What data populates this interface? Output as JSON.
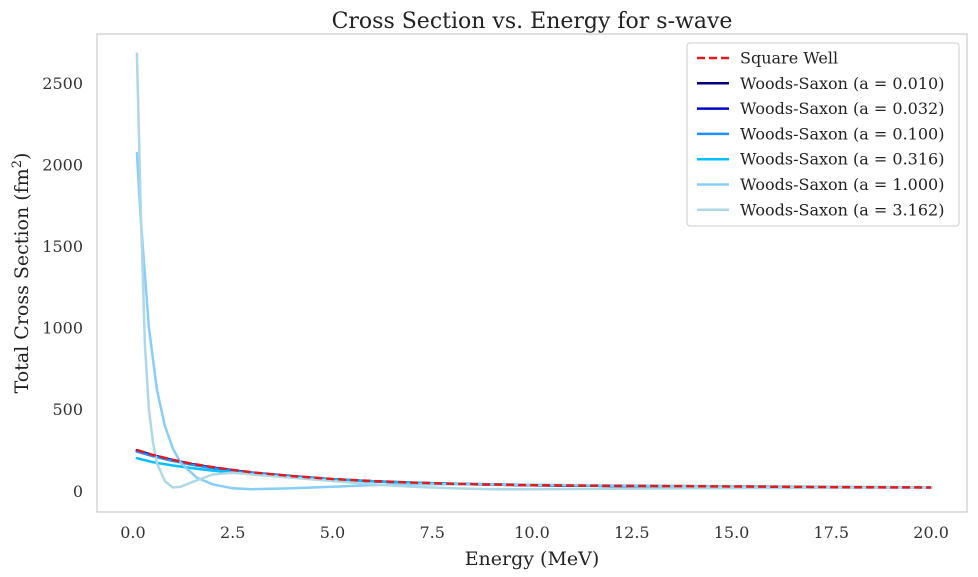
{
  "chart_data": {
    "type": "line",
    "title": "Cross Section vs. Energy for s-wave",
    "xlabel": "Energy (MeV)",
    "ylabel_main": "Total Cross Section (fm",
    "ylabel_sup": "2",
    "ylabel_close": ")",
    "xlim": [
      -0.9,
      20.9
    ],
    "ylim": [
      -130,
      2800
    ],
    "xticks": [
      0.0,
      2.5,
      5.0,
      7.5,
      10.0,
      12.5,
      15.0,
      17.5,
      20.0
    ],
    "xtick_labels": [
      "0.0",
      "2.5",
      "5.0",
      "7.5",
      "10.0",
      "12.5",
      "15.0",
      "17.5",
      "20.0"
    ],
    "yticks": [
      0,
      500,
      1000,
      1500,
      2000,
      2500
    ],
    "ytick_labels": [
      "0",
      "500",
      "1000",
      "1500",
      "2000",
      "2500"
    ],
    "grid": false,
    "legend_position": "top-right",
    "series": [
      {
        "name": "Square Well",
        "color": "#e31a1c",
        "dash": true,
        "x": [
          0.1,
          0.5,
          1,
          1.5,
          2,
          2.5,
          3,
          4,
          5,
          6,
          7,
          8,
          10,
          12,
          14,
          16,
          18,
          20
        ],
        "y": [
          250,
          220,
          190,
          165,
          145,
          128,
          113,
          90,
          72,
          60,
          50,
          43,
          34,
          30,
          28,
          25,
          22,
          20
        ]
      },
      {
        "name": "Woods-Saxon (a = 0.010)",
        "color": "#000080",
        "dash": false,
        "x": [
          0.1,
          0.5,
          1,
          1.5,
          2,
          2.5,
          3,
          4,
          5,
          6,
          7,
          8,
          10,
          12,
          14,
          16,
          18,
          20
        ],
        "y": [
          248,
          218,
          188,
          163,
          143,
          126,
          111,
          89,
          71,
          59,
          49,
          42,
          34,
          30,
          27,
          25,
          22,
          20
        ]
      },
      {
        "name": "Woods-Saxon (a = 0.032)",
        "color": "#0000cd",
        "dash": false,
        "x": [
          0.1,
          0.5,
          1,
          1.5,
          2,
          2.5,
          3,
          4,
          5,
          6,
          7,
          8,
          10,
          12,
          14,
          16,
          18,
          20
        ],
        "y": [
          245,
          215,
          186,
          161,
          141,
          124,
          110,
          88,
          70,
          58,
          49,
          42,
          34,
          30,
          27,
          25,
          22,
          20
        ]
      },
      {
        "name": "Woods-Saxon (a = 0.100)",
        "color": "#1e90ff",
        "dash": false,
        "x": [
          0.1,
          0.5,
          1,
          1.5,
          2,
          2.5,
          3,
          4,
          5,
          6,
          7,
          8,
          10,
          12,
          14,
          16,
          18,
          20
        ],
        "y": [
          240,
          212,
          183,
          159,
          139,
          122,
          109,
          87,
          70,
          58,
          49,
          42,
          34,
          30,
          27,
          25,
          22,
          20
        ]
      },
      {
        "name": "Woods-Saxon (a = 0.316)",
        "color": "#00bfff",
        "dash": false,
        "x": [
          0.1,
          0.5,
          1,
          1.5,
          2,
          2.5,
          3,
          4,
          5,
          6,
          7,
          8,
          10,
          12,
          14,
          16,
          18,
          20
        ],
        "y": [
          200,
          175,
          155,
          138,
          124,
          112,
          101,
          84,
          70,
          59,
          50,
          44,
          36,
          31,
          28,
          25,
          23,
          21
        ]
      },
      {
        "name": "Woods-Saxon (a = 1.000)",
        "color": "#87cefa",
        "dash": false,
        "x": [
          0.1,
          0.2,
          0.4,
          0.6,
          0.8,
          1.0,
          1.2,
          1.6,
          2.0,
          2.5,
          3.0,
          3.5,
          4.0,
          5.0,
          6.0,
          7.0,
          8.0,
          10.0,
          12.0,
          14.0,
          16.0,
          18.0,
          20.0
        ],
        "y": [
          2070,
          1650,
          1000,
          620,
          400,
          260,
          170,
          80,
          40,
          15,
          10,
          12,
          15,
          25,
          35,
          40,
          40,
          37,
          33,
          30,
          27,
          24,
          22
        ]
      },
      {
        "name": "Woods-Saxon (a = 3.162)",
        "color": "#add8e6",
        "dash": false,
        "x": [
          0.1,
          0.2,
          0.3,
          0.4,
          0.5,
          0.6,
          0.8,
          1.0,
          1.2,
          1.5,
          2.0,
          2.5,
          3.0,
          4.0,
          5.0,
          6.0,
          7.0,
          8.0,
          9.0,
          10.0,
          12.0,
          14.0,
          16.0,
          18.0,
          20.0
        ],
        "y": [
          2680,
          1700,
          900,
          500,
          300,
          170,
          60,
          20,
          25,
          55,
          100,
          110,
          100,
          80,
          60,
          40,
          25,
          15,
          10,
          9,
          12,
          15,
          17,
          18,
          18
        ]
      }
    ]
  }
}
